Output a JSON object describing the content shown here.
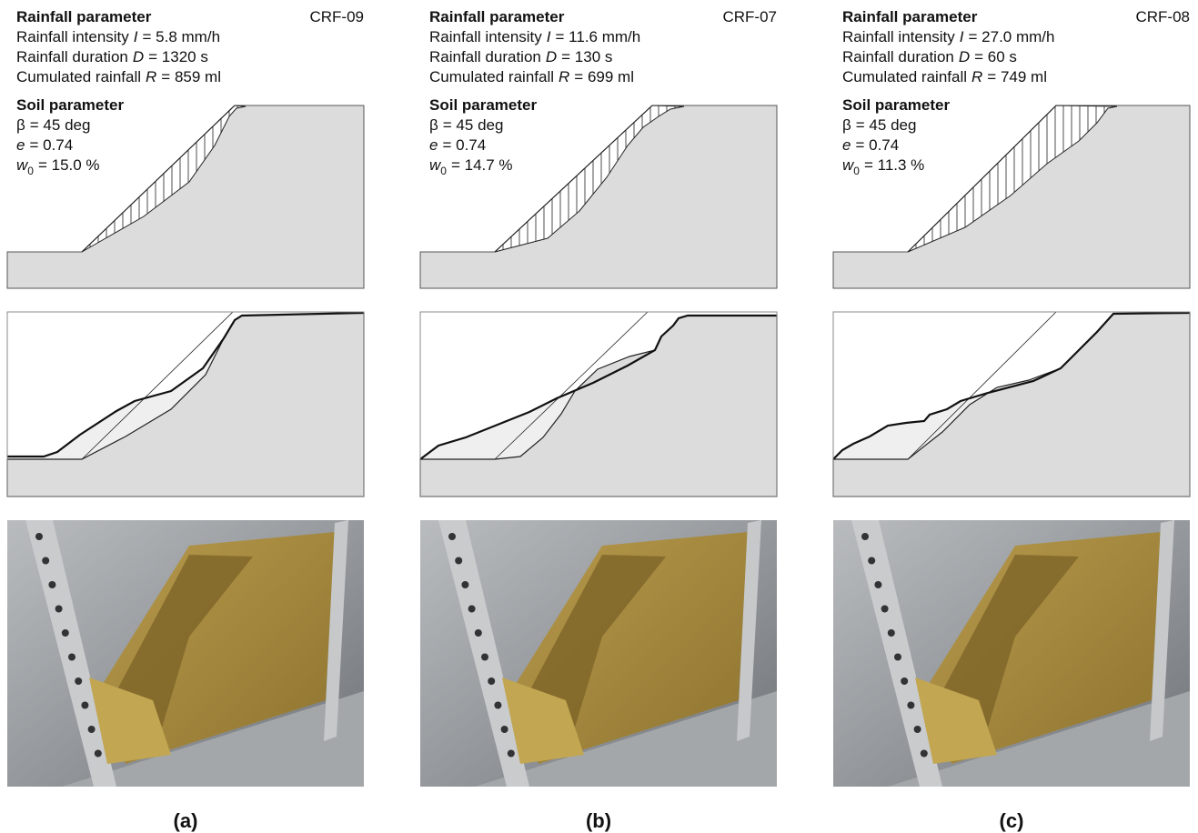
{
  "panels": [
    {
      "label": "(a)",
      "code": "CRF-09",
      "rainfall": {
        "title": "Rainfall parameter",
        "lines": [
          {
            "label": "Rainfall intensity",
            "symbol": "I",
            "value": "= 5.8 mm/h"
          },
          {
            "label": "Rainfall duration",
            "symbol": "D",
            "value": "= 1320 s"
          },
          {
            "label": "Cumulated rainfall",
            "symbol": "R",
            "value": "= 859 ml"
          }
        ]
      },
      "soil": {
        "title": "Soil parameter",
        "lines": [
          {
            "label": "β",
            "value": "= 45 deg"
          },
          {
            "symbol": "e",
            "value": "= 0.74"
          },
          {
            "symbol": "w",
            "sub": "0",
            "value": "= 15.0 %"
          }
        ]
      }
    },
    {
      "label": "(b)",
      "code": "CRF-07",
      "rainfall": {
        "title": "Rainfall parameter",
        "lines": [
          {
            "label": "Rainfall intensity",
            "symbol": "I",
            "value": "= 11.6 mm/h"
          },
          {
            "label": "Rainfall duration",
            "symbol": "D",
            "value": "= 130 s"
          },
          {
            "label": "Cumulated rainfall",
            "symbol": "R",
            "value": "= 699 ml"
          }
        ]
      },
      "soil": {
        "title": "Soil parameter",
        "lines": [
          {
            "label": "β",
            "value": "= 45 deg"
          },
          {
            "symbol": "e",
            "value": "= 0.74"
          },
          {
            "symbol": "w",
            "sub": "0",
            "value": "= 14.7 %"
          }
        ]
      }
    },
    {
      "label": "(c)",
      "code": "CRF-08",
      "rainfall": {
        "title": "Rainfall parameter",
        "lines": [
          {
            "label": "Rainfall intensity",
            "symbol": "I",
            "value": "= 27.0 mm/h"
          },
          {
            "label": "Rainfall duration",
            "symbol": "D",
            "value": "= 60 s"
          },
          {
            "label": "Cumulated rainfall",
            "symbol": "R",
            "value": "= 749 ml"
          }
        ]
      },
      "soil": {
        "title": "Soil parameter",
        "lines": [
          {
            "label": "β",
            "value": "= 45 deg"
          },
          {
            "symbol": "e",
            "value": "= 0.74"
          },
          {
            "symbol": "w",
            "sub": "0",
            "value": "= 11.3 %"
          }
        ]
      }
    }
  ]
}
